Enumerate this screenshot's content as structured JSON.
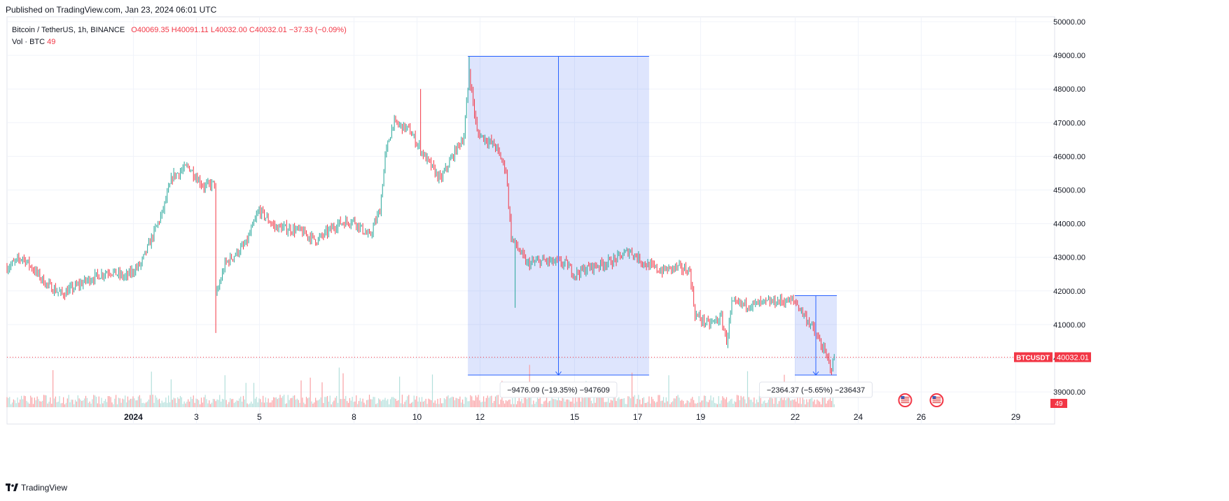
{
  "header": {
    "published_text": "Published on TradingView.com, Jan 23, 2024 06:01 UTC"
  },
  "legend": {
    "symbol": "Bitcoin / TetherUS, 1h, BINANCE",
    "open": "O40069.35",
    "high": "H40091.11",
    "low": "L40032.00",
    "close": "C40032.01",
    "change": "−37.33 (−0.09%)",
    "volume_label": "Vol · BTC",
    "volume_value": "49"
  },
  "price_scale": {
    "tick_labels": [
      "50000.00",
      "49000.00",
      "48000.00",
      "47000.00",
      "46000.00",
      "45000.00",
      "44000.00",
      "43000.00",
      "42000.00",
      "41000.00",
      "40000.00",
      "39000.00"
    ],
    "last_price_symbol": "BTCUSDT",
    "last_price_value": "40032.01",
    "volume_badge": "49"
  },
  "time_scale": {
    "tick_labels": [
      "2024",
      "3",
      "5",
      "8",
      "10",
      "12",
      "15",
      "17",
      "19",
      "22",
      "24",
      "26",
      "29"
    ]
  },
  "colors": {
    "up": "#26a69a",
    "down": "#f23645",
    "vol_up": "#b2dfdb",
    "vol_down": "#faa1a4",
    "range_fill": "#3a66f2",
    "range_line": "#2962ff",
    "last_price": "#f23645",
    "grid": "#f0f3fa"
  },
  "chart_data": {
    "type": "candlestick",
    "interval": "1h",
    "x_range": [
      "2023-12-28",
      "2024-01-29"
    ],
    "ylim": [
      38500,
      50000
    ],
    "grid": true,
    "last_price": 40032.01,
    "price_path": [
      [
        "2023-12-28 00:00",
        42700
      ],
      [
        "2023-12-28 12:00",
        43000
      ],
      [
        "2023-12-29 06:00",
        42200
      ],
      [
        "2023-12-29 18:00",
        41900
      ],
      [
        "2023-12-30 12:00",
        42300
      ],
      [
        "2023-12-31 06:00",
        42600
      ],
      [
        "2023-12-31 18:00",
        42400
      ],
      [
        "2024-01-01 06:00",
        42800
      ],
      [
        "2024-01-01 22:00",
        44300
      ],
      [
        "2024-01-02 06:00",
        45400
      ],
      [
        "2024-01-02 18:00",
        45700
      ],
      [
        "2024-01-03 06:00",
        45100
      ],
      [
        "2024-01-03 14:00",
        45200
      ],
      [
        "2024-01-03 15:00",
        41800
      ],
      [
        "2024-01-03 22:00",
        42800
      ],
      [
        "2024-01-04 14:00",
        43400
      ],
      [
        "2024-01-05 00:00",
        44400
      ],
      [
        "2024-01-05 12:00",
        43900
      ],
      [
        "2024-01-06 06:00",
        43800
      ],
      [
        "2024-01-06 20:00",
        43500
      ],
      [
        "2024-01-07 12:00",
        44000
      ],
      [
        "2024-01-08 00:00",
        44100
      ],
      [
        "2024-01-08 12:00",
        43600
      ],
      [
        "2024-01-08 20:00",
        44400
      ],
      [
        "2024-01-09 00:00",
        46000
      ],
      [
        "2024-01-09 06:00",
        47000
      ],
      [
        "2024-01-09 18:00",
        46800
      ],
      [
        "2024-01-10 06:00",
        46000
      ],
      [
        "2024-01-10 18:00",
        45300
      ],
      [
        "2024-01-11 06:00",
        46200
      ],
      [
        "2024-01-11 12:00",
        46600
      ],
      [
        "2024-01-11 16:00",
        48500
      ],
      [
        "2024-01-11 22:00",
        46700
      ],
      [
        "2024-01-12 12:00",
        46300
      ],
      [
        "2024-01-12 20:00",
        45600
      ],
      [
        "2024-01-13 00:00",
        43600
      ],
      [
        "2024-01-13 12:00",
        42800
      ],
      [
        "2024-01-14 00:00",
        42900
      ],
      [
        "2024-01-14 18:00",
        42800
      ],
      [
        "2024-01-15 00:00",
        42500
      ],
      [
        "2024-01-15 12:00",
        42700
      ],
      [
        "2024-01-16 06:00",
        42900
      ],
      [
        "2024-01-16 18:00",
        43200
      ],
      [
        "2024-01-17 06:00",
        42800
      ],
      [
        "2024-01-17 18:00",
        42600
      ],
      [
        "2024-01-18 06:00",
        42700
      ],
      [
        "2024-01-18 16:00",
        42600
      ],
      [
        "2024-01-18 20:00",
        41300
      ],
      [
        "2024-01-19 06:00",
        41000
      ],
      [
        "2024-01-19 16:00",
        41200
      ],
      [
        "2024-01-19 20:00",
        40500
      ],
      [
        "2024-01-20 00:00",
        41600
      ],
      [
        "2024-01-20 18:00",
        41600
      ],
      [
        "2024-01-21 12:00",
        41700
      ],
      [
        "2024-01-22 00:00",
        41700
      ],
      [
        "2024-01-22 12:00",
        41000
      ],
      [
        "2024-01-22 20:00",
        40400
      ],
      [
        "2024-01-23 04:00",
        39700
      ],
      [
        "2024-01-23 06:00",
        40032
      ]
    ],
    "annotations": [
      {
        "type": "price_range",
        "from": "2024-01-11 15:00",
        "to": "2024-01-17 09:00",
        "price_high": 48970,
        "price_low": 39500,
        "label": "−9476.09 (−19.35%) −947609"
      },
      {
        "type": "price_range",
        "from": "2024-01-22 00:00",
        "to": "2024-01-23 08:00",
        "price_high": 41860,
        "price_low": 39500,
        "label": "−2364.37 (−5.65%) −236437"
      }
    ],
    "event_icons": [
      {
        "at": "2024-01-25 12:00",
        "icon": "us-flag-icon"
      },
      {
        "at": "2024-01-26 12:00",
        "icon": "us-flag-icon"
      }
    ]
  },
  "footer": {
    "brand": "TradingView"
  }
}
